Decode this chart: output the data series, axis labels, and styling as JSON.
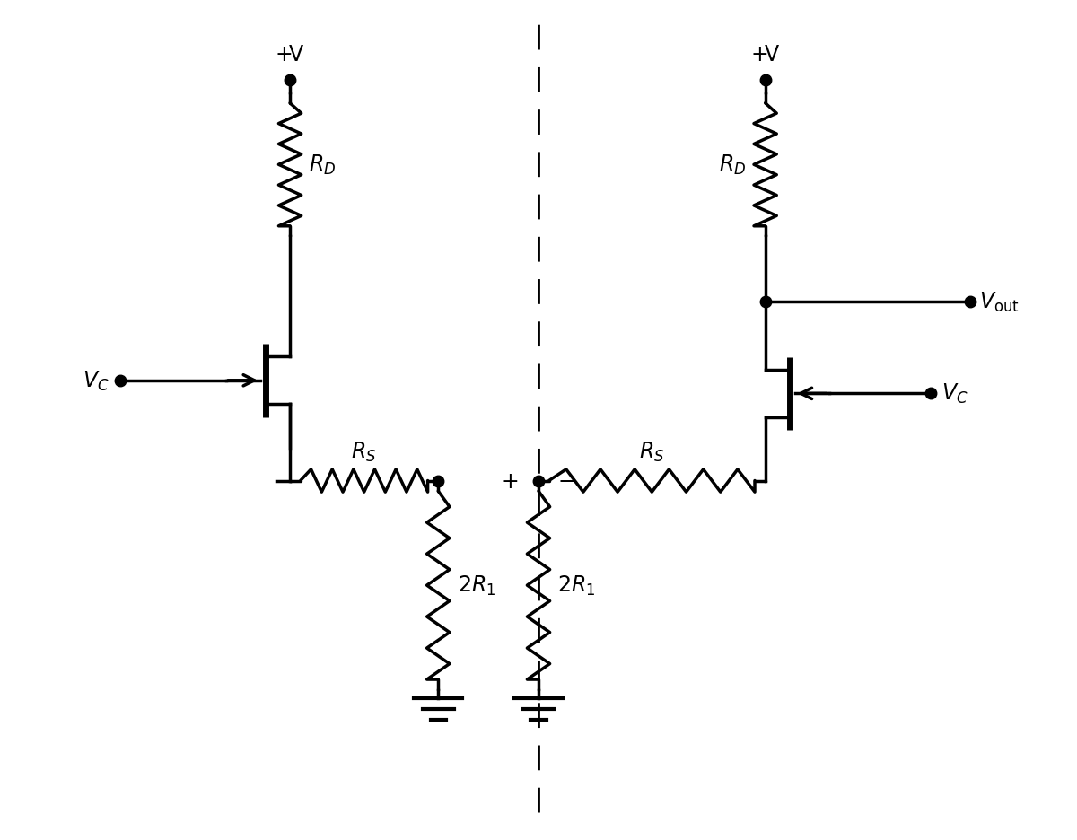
{
  "bg_color": "#ffffff",
  "line_color": "#000000",
  "line_width": 2.5,
  "dot_size": 9,
  "figsize": [
    12.0,
    9.37
  ],
  "dpi": 100,
  "xlim": [
    0,
    12
  ],
  "ylim": [
    0,
    9.5
  ]
}
